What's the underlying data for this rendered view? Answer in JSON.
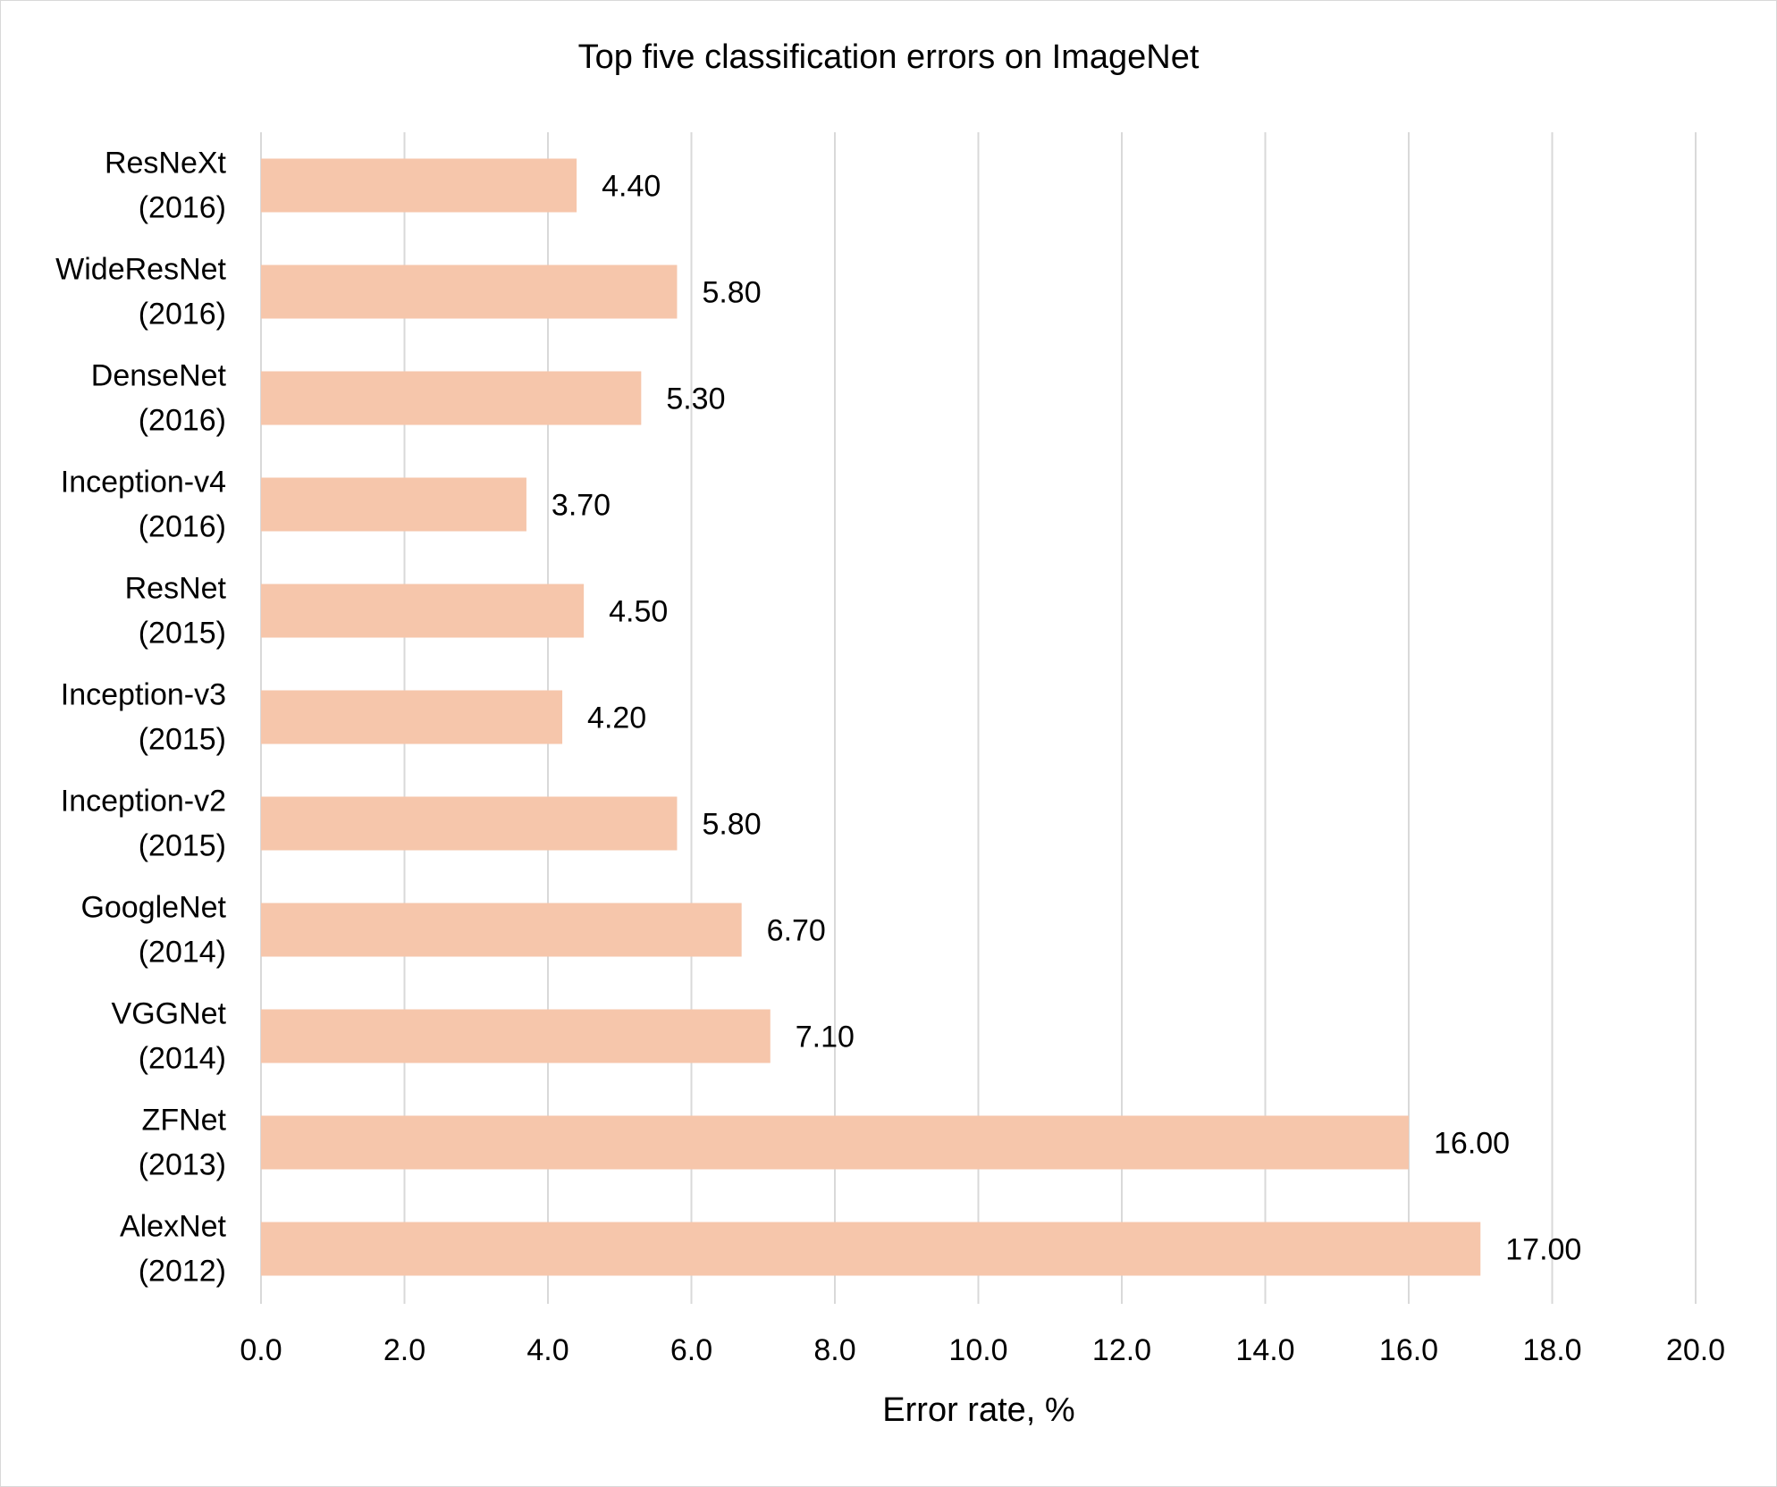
{
  "chart_data": {
    "type": "bar",
    "orientation": "horizontal",
    "title": "Top five classification errors on ImageNet",
    "xlabel": "Error rate, %",
    "ylabel": "",
    "categories": [
      [
        "ResNeXt",
        "(2016)"
      ],
      [
        "WideResNet",
        "(2016)"
      ],
      [
        "DenseNet",
        "(2016)"
      ],
      [
        "Inception-v4",
        "(2016)"
      ],
      [
        "ResNet",
        "(2015)"
      ],
      [
        "Inception-v3",
        "(2015)"
      ],
      [
        "Inception-v2",
        "(2015)"
      ],
      [
        "GoogleNet",
        "(2014)"
      ],
      [
        "VGGNet",
        "(2014)"
      ],
      [
        "ZFNet",
        "(2013)"
      ],
      [
        "AlexNet",
        "(2012)"
      ]
    ],
    "values": [
      4.4,
      5.8,
      5.3,
      3.7,
      4.5,
      4.2,
      5.8,
      6.7,
      7.1,
      16.0,
      17.0
    ],
    "data_labels": [
      "4.40",
      "5.80",
      "5.30",
      "3.70",
      "4.50",
      "4.20",
      "5.80",
      "6.70",
      "7.10",
      "16.00",
      "17.00"
    ],
    "xlim": [
      0,
      20
    ],
    "xticks": [
      "0.0",
      "2.0",
      "4.0",
      "6.0",
      "8.0",
      "10.0",
      "12.0",
      "14.0",
      "16.0",
      "18.0",
      "20.0"
    ],
    "grid": "vertical",
    "legend": "none",
    "colors": {
      "bar": "#f6c6ab",
      "grid": "#d9d9d9",
      "axis": "#d9d9d9",
      "text": "#000000"
    }
  }
}
